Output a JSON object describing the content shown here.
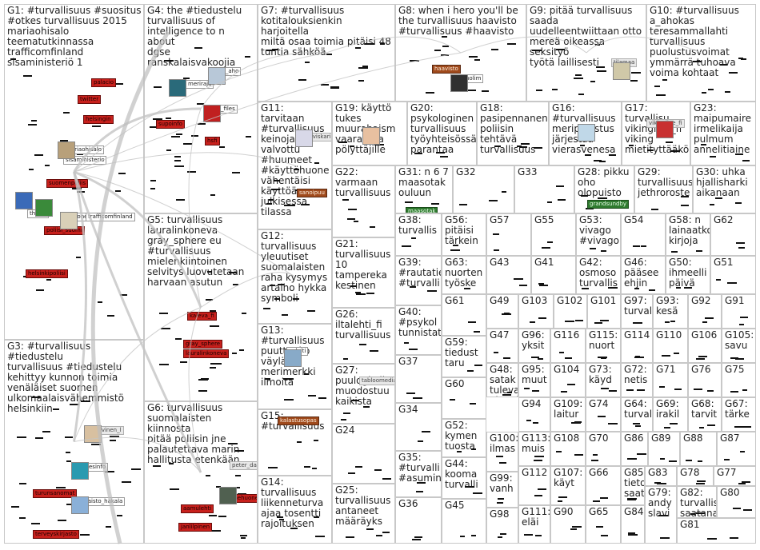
{
  "colors": {
    "red": "#c8201c",
    "brown": "#a04a1c",
    "green": "#2e7a2e",
    "gray_edge": "#c4c4c4",
    "border": "#c8c8c8"
  },
  "groups": [
    {
      "id": "G1",
      "label": "G1: #turvallisuus #suositus\n#otkes turvallisuus 2015\nmariaohisalo\nteematutkinnassa\ntrafficomfinland\nsisaministeriö 1",
      "tags": [
        [
          "twitter",
          "red"
        ],
        [
          "helsingin",
          "red"
        ],
        [
          "palacio",
          "red"
        ],
        [
          "mariaohisalo",
          "white"
        ],
        [
          "sisaministerio",
          "white"
        ],
        [
          "suomenpoliis",
          "red"
        ],
        [
          "thlorg",
          "white"
        ],
        [
          "kvalonen",
          "white"
        ],
        [
          "trafficomfinland",
          "white"
        ],
        [
          "poliisi_suomi",
          "red"
        ],
        [
          "helsinkipoliisi",
          "red"
        ]
      ]
    },
    {
      "id": "G2",
      "label": "",
      "tags": []
    },
    {
      "id": "G3",
      "label": "G3: #turvallisuus #tiedustelu\nturvallisuus #tiedustelu\nkehittyy kunnon toimia\nvenäläiset suomen\nulkomaalaisvähemmistö\nhelsinkiin",
      "tags": [
        [
          "jrvinen_l",
          "gray"
        ],
        [
          "tukesinfo",
          "white"
        ],
        [
          "taisto_hakala",
          "white"
        ],
        [
          "turunsanomat",
          "red"
        ],
        [
          "terveyskirjasto",
          "red"
        ]
      ]
    },
    {
      "id": "G4",
      "label": "G4: the #tiedustelu\nturvallisuus of\nintelligence to n about\ndgse\nranskalaisvakoojia",
      "tags": [
        [
          "merirajа",
          "white"
        ],
        [
          "ohra_aho",
          "white"
        ],
        [
          "kgb_files",
          "white"
        ],
        [
          "supoinfo",
          "red"
        ],
        [
          "hsfi",
          "red"
        ]
      ]
    },
    {
      "id": "G5",
      "label": "G5: turvallisuus\nlauralinkoneva\ngray_sphere eu\n#turvallisuus\nmielenkiintoinen\nselvitys luovutetaan\nharvaan asutun",
      "tags": [
        [
          "kaleva_fi",
          "red"
        ],
        [
          "gray_sphere",
          "red"
        ],
        [
          "lauralinkoneva",
          "red"
        ]
      ]
    },
    {
      "id": "G6",
      "label": "G6: turvallisuus\nsuomalaisten kiinnosta\npitää poliisin jne\npalautettava marin\nhallitusta etenkään",
      "tags": [
        [
          "peter_davit",
          "gray"
        ],
        [
          "tilannehuone",
          "red"
        ],
        [
          "aamulehti",
          "red"
        ],
        [
          "janlilpinen",
          "red"
        ]
      ]
    },
    {
      "id": "G7",
      "label": "G7: #turvallisuus\nkotitalouksienkin harjoitella\nmiltä osaa toimia pitäisi 48\ntuntia sähköä",
      "tags": []
    },
    {
      "id": "G8",
      "label": "G8: when i hero you'll be\nthe turvallisuus haavisto\n#turvallisuus #haavisto",
      "tags": [
        [
          "haavisto",
          "brown"
        ],
        [
          "jarnolim",
          "white"
        ]
      ]
    },
    {
      "id": "G9",
      "label": "G9: pitää turvallisuus\nsaada\nuudelleentwiittaan otto\nmereä oikeassa seksityö\ntyötä laillisesti",
      "tags": [
        [
          "tilamaa",
          "gray"
        ]
      ]
    },
    {
      "id": "G10",
      "label": "G10: #turvallisuus\na_ahokas\nteresammallahti\nturvallisuus\npuolustusvoimat\nymmärrä tuhoava\nvoima kohtaat",
      "tags": []
    },
    {
      "id": "G11",
      "label": "G11: tarvitaan\n#turvallisuus\nkeinoja valvottu\n#huumeet\n#käyttöhuone\nvähentäisi\nkäyttöä\njulkisessa\ntilassa",
      "tags": [
        [
          "martviskari",
          "gray"
        ],
        [
          "sanoipuu",
          "brown"
        ]
      ]
    },
    {
      "id": "G12",
      "label": "G12:\nturvallisuus\nyleuutiset\nsuomalaisten\nraha kysymys\nartalho hykka\nsymboli",
      "tags": []
    },
    {
      "id": "G13",
      "label": "G13:\n#turvallisuus\npuuttuuko\nväylältä\nmerimerkki\nilmoita",
      "tags": [
        [
          "aylaiti",
          "white"
        ]
      ]
    },
    {
      "id": "G14",
      "label": "G14:\nturvallisuus\nliikenneturva\najaa tosentti\nrajoituksen",
      "tags": []
    },
    {
      "id": "G15",
      "label": "G15:\n#turvallisuus",
      "tags": [
        [
          "kalastusopas",
          "brown"
        ]
      ]
    },
    {
      "id": "G16",
      "label": "G16:\n#turvallisuus\nmeripelastus\njärjestää\nvierasvenesa",
      "tags": []
    },
    {
      "id": "G17",
      "label": "G17:\nturvallisu\nvikingline_fi\nviking\nmietityttääkö",
      "tags": [
        [
          "vikingline_fi",
          "gray"
        ]
      ]
    },
    {
      "id": "G18",
      "label": "G18:\npasipennanen\npoliisin\ntehtävä\nturvallisuus",
      "tags": []
    },
    {
      "id": "G19",
      "label": "G19: käyttö\ntukes\nmuurahaism\nvaarallisia\npölyttäjille",
      "tags": []
    },
    {
      "id": "G20",
      "label": "G20:\npsykologinen\nturvallisuus\ntyöyhteisössä\nparantaa",
      "tags": []
    },
    {
      "id": "G21",
      "label": "G21:\nturvallisuus\n10\ntampereka\nkestinen",
      "tags": []
    },
    {
      "id": "G22",
      "label": "G22:\nvarmaan\nturvallisuus",
      "tags": []
    },
    {
      "id": "G23",
      "label": "G23:\nmaipumaire\nirmelikaija\npulmum\nannelitiaine",
      "tags": []
    },
    {
      "id": "G24",
      "label": "G24",
      "tags": []
    },
    {
      "id": "G25",
      "label": "G25:\nturvallisuus\nantaneet\nmääräyks",
      "tags": []
    },
    {
      "id": "G26",
      "label": "G26:\niltalehti_fi\nturvallisuus",
      "tags": []
    },
    {
      "id": "G27",
      "label": "G27:\npuulogistii\nmuodostuu\nkaikista",
      "tags": [
        [
          "tabloomedia65",
          "gray"
        ]
      ]
    },
    {
      "id": "G28",
      "label": "G28: pikku\noho\nolopuisto",
      "tags": [
        [
          "grandsundby",
          "green"
        ]
      ]
    },
    {
      "id": "G29",
      "label": "G29:\nturvallisuus\njethroroste",
      "tags": []
    },
    {
      "id": "G30",
      "label": "G30: uhka\nhjallisharki\naikanaan",
      "tags": []
    },
    {
      "id": "G31",
      "label": "G31: n 6 7\nmaasotak\nouluun",
      "tags": [
        [
          "maasotak",
          "green"
        ]
      ]
    },
    {
      "id": "G32",
      "label": "G32",
      "tags": []
    },
    {
      "id": "G33",
      "label": "G33",
      "tags": []
    },
    {
      "id": "G34",
      "label": "G34",
      "tags": []
    },
    {
      "id": "G35",
      "label": "G35:\n#turvalli\n#asumin",
      "tags": []
    },
    {
      "id": "G36",
      "label": "G36",
      "tags": []
    },
    {
      "id": "G37",
      "label": "G37",
      "tags": []
    },
    {
      "id": "G38",
      "label": "G38:\nturvallis",
      "tags": []
    },
    {
      "id": "G39",
      "label": "G39:\n#rautatiet\n#turvalli",
      "tags": []
    },
    {
      "id": "G40",
      "label": "G40:\n#psykol\ntunnistat",
      "tags": []
    },
    {
      "id": "G41",
      "label": "G41",
      "tags": []
    },
    {
      "id": "G42",
      "label": "G42:\nosmoso\nturvallis",
      "tags": []
    },
    {
      "id": "G43",
      "label": "G43",
      "tags": []
    },
    {
      "id": "G44",
      "label": "G44:\nkooma\nturvalli",
      "tags": []
    },
    {
      "id": "G45",
      "label": "G45",
      "tags": []
    },
    {
      "id": "G46",
      "label": "G46:\npääsee\nehjin",
      "tags": []
    },
    {
      "id": "G47",
      "label": "G47",
      "tags": []
    },
    {
      "id": "G48",
      "label": "G48:\nsatak\ntuleva\nalueel",
      "tags": []
    },
    {
      "id": "G49",
      "label": "G49",
      "tags": []
    },
    {
      "id": "G50",
      "label": "G50:\nihmeelli\npäivä",
      "tags": []
    },
    {
      "id": "G51",
      "label": "G51",
      "tags": []
    },
    {
      "id": "G52",
      "label": "G52:\nkymen\ntuosta",
      "tags": []
    },
    {
      "id": "G53",
      "label": "G53:\nvivago\n#vivago",
      "tags": []
    },
    {
      "id": "G54",
      "label": "G54",
      "tags": []
    },
    {
      "id": "G55",
      "label": "G55",
      "tags": []
    },
    {
      "id": "G56",
      "label": "G56:\npitäisi\ntärkein",
      "tags": []
    },
    {
      "id": "G57",
      "label": "G57",
      "tags": []
    },
    {
      "id": "G58",
      "label": "G58: n\nlainaatko\nkirjoja",
      "tags": []
    },
    {
      "id": "G59",
      "label": "G59:\ntiedust\ntaru",
      "tags": []
    },
    {
      "id": "G60",
      "label": "G60",
      "tags": []
    },
    {
      "id": "G61",
      "label": "G61",
      "tags": []
    },
    {
      "id": "G62",
      "label": "G62",
      "tags": []
    },
    {
      "id": "G63",
      "label": "G63:\nnuorten\ntyöske",
      "tags": []
    },
    {
      "id": "G64",
      "label": "G64:\nturval",
      "tags": []
    },
    {
      "id": "G65",
      "label": "G65",
      "tags": []
    },
    {
      "id": "G66",
      "label": "G66",
      "tags": []
    },
    {
      "id": "G67",
      "label": "G67:\ntärke",
      "tags": []
    },
    {
      "id": "G68",
      "label": "G68:\ntarvit",
      "tags": []
    },
    {
      "id": "G69",
      "label": "G69:\nirakil",
      "tags": []
    },
    {
      "id": "G70",
      "label": "G70",
      "tags": []
    },
    {
      "id": "G71",
      "label": "G71",
      "tags": []
    },
    {
      "id": "G72",
      "label": "G72:\nnetis",
      "tags": []
    },
    {
      "id": "G73",
      "label": "G73:\nkäyd",
      "tags": []
    },
    {
      "id": "G74",
      "label": "G74",
      "tags": []
    },
    {
      "id": "G75",
      "label": "G75",
      "tags": []
    },
    {
      "id": "G76",
      "label": "G76",
      "tags": []
    },
    {
      "id": "G77",
      "label": "G77",
      "tags": []
    },
    {
      "id": "G78",
      "label": "G78",
      "tags": []
    },
    {
      "id": "G79",
      "label": "G79:\nandy\nslavi",
      "tags": []
    },
    {
      "id": "G80",
      "label": "G80",
      "tags": []
    },
    {
      "id": "G81",
      "label": "G81",
      "tags": []
    },
    {
      "id": "G82",
      "label": "G82:\nturvallis\nsaatana",
      "tags": []
    },
    {
      "id": "G83",
      "label": "G83",
      "tags": []
    },
    {
      "id": "G84",
      "label": "G84",
      "tags": []
    },
    {
      "id": "G85",
      "label": "G85:\ntieto\nsaat",
      "tags": []
    },
    {
      "id": "G86",
      "label": "G86",
      "tags": []
    },
    {
      "id": "G87",
      "label": "G87",
      "tags": []
    },
    {
      "id": "G88",
      "label": "G88",
      "tags": []
    },
    {
      "id": "G89",
      "label": "G89",
      "tags": []
    },
    {
      "id": "G90",
      "label": "G90",
      "tags": []
    },
    {
      "id": "G91",
      "label": "G91",
      "tags": []
    },
    {
      "id": "G92",
      "label": "G92",
      "tags": []
    },
    {
      "id": "G93",
      "label": "G93:\nkesä",
      "tags": []
    },
    {
      "id": "G94",
      "label": "G94",
      "tags": []
    },
    {
      "id": "G95",
      "label": "G95:\nmuut",
      "tags": []
    },
    {
      "id": "G96",
      "label": "G96:\nyksit",
      "tags": []
    },
    {
      "id": "G97",
      "label": "G97:\nturval",
      "tags": []
    },
    {
      "id": "G98",
      "label": "G98",
      "tags": []
    },
    {
      "id": "G99",
      "label": "G99:\nvanh",
      "tags": []
    },
    {
      "id": "G100",
      "label": "G100:\nilmas",
      "tags": []
    },
    {
      "id": "G101",
      "label": "G101",
      "tags": []
    },
    {
      "id": "G102",
      "label": "G102",
      "tags": []
    },
    {
      "id": "G103",
      "label": "G103",
      "tags": []
    },
    {
      "id": "G104",
      "label": "G104",
      "tags": []
    },
    {
      "id": "G105",
      "label": "G105:\nsavu",
      "tags": []
    },
    {
      "id": "G106",
      "label": "G106",
      "tags": []
    },
    {
      "id": "G107",
      "label": "G107:\nkäyt",
      "tags": []
    },
    {
      "id": "G108",
      "label": "G108",
      "tags": []
    },
    {
      "id": "G109",
      "label": "G109:\nlaitur",
      "tags": []
    },
    {
      "id": "G110",
      "label": "G110",
      "tags": []
    },
    {
      "id": "G111",
      "label": "G111:\neläi",
      "tags": []
    },
    {
      "id": "G112",
      "label": "G112",
      "tags": []
    },
    {
      "id": "G113",
      "label": "G113:\nmuis",
      "tags": []
    },
    {
      "id": "G114",
      "label": "G114",
      "tags": []
    },
    {
      "id": "G115",
      "label": "G115:\nnuort",
      "tags": []
    },
    {
      "id": "G116",
      "label": "G116",
      "tags": []
    }
  ]
}
